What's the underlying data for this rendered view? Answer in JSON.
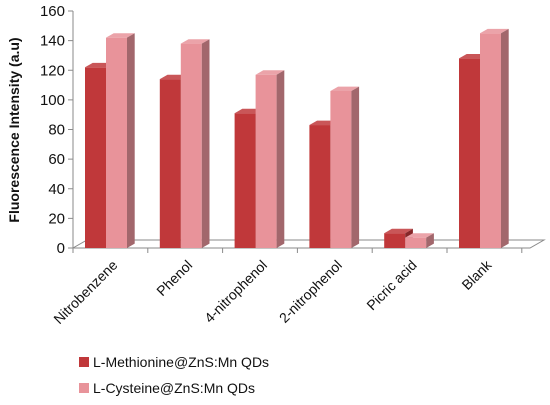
{
  "chart_data": {
    "type": "bar",
    "title": "",
    "xlabel": "",
    "ylabel": "Fluorescence Intensity (a.u)",
    "ylim": [
      0,
      160
    ],
    "yticks": [
      0,
      20,
      40,
      60,
      80,
      100,
      120,
      140,
      160
    ],
    "categories": [
      "Nitrobenzene",
      "Phenol",
      "4-nitrophenol",
      "2-nitrophenol",
      "Picric acid",
      "Blank"
    ],
    "series": [
      {
        "name": "L-Methionine@ZnS:Mn QDs",
        "values": [
          122,
          114,
          91,
          83,
          10,
          128
        ]
      },
      {
        "name": "L-Cysteine@ZnS:Mn QDs",
        "values": [
          142,
          138,
          117,
          106,
          7,
          145
        ]
      }
    ],
    "legend_position": "bottom-left",
    "grid": false,
    "colors": {
      "series_1": "#c0383a",
      "series_2": "#e8939a"
    }
  }
}
